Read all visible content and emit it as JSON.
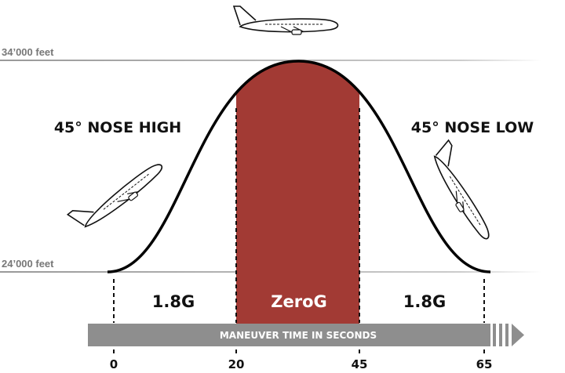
{
  "altitudes": {
    "top": "34’000 feet",
    "bottom": "24’000 feet"
  },
  "phases": {
    "left_attitude": "45° NOSE HIGH",
    "right_attitude": "45° NOSE LOW"
  },
  "segments": [
    {
      "label": "1.8G"
    },
    {
      "label": "ZeroG"
    },
    {
      "label": "1.8G"
    }
  ],
  "timeline": {
    "label": "MANEUVER TIME IN SECONDS",
    "ticks": [
      "0",
      "20",
      "45",
      "65"
    ]
  },
  "colors": {
    "zero_g": "#a23a34",
    "bar": "#8e8e8e",
    "curve": "#000000",
    "altitude_line": "#bbbbbb"
  },
  "icons": [
    "airplane-level-icon",
    "airplane-climbing-icon",
    "airplane-descending-icon"
  ]
}
